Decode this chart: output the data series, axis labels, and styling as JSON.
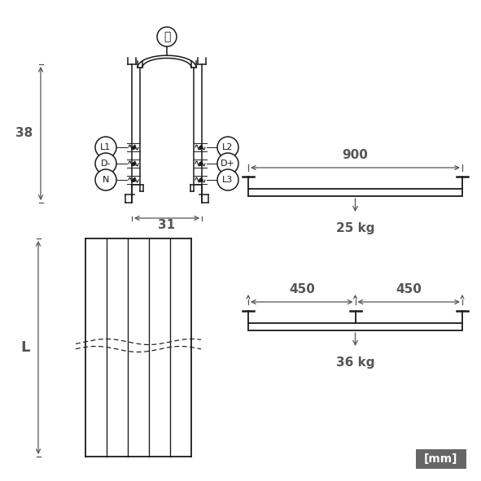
{
  "bg_color": "#ffffff",
  "line_color": "#1a1a1a",
  "dim_color": "#555555",
  "label_38": "38",
  "label_31": "31",
  "label_L": "L",
  "label_900": "900",
  "label_25kg": "25 kg",
  "label_450a": "450",
  "label_450b": "450",
  "label_36kg": "36 kg",
  "label_mm": "[mm]",
  "mm_box_color": "#666666",
  "mm_text_color": "#ffffff",
  "fig_w": 5.91,
  "fig_h": 5.91,
  "dpi": 100
}
